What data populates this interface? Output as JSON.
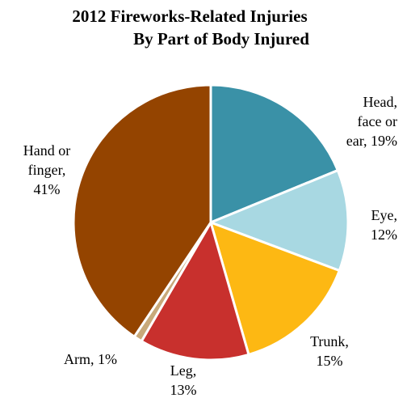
{
  "chart_data": {
    "type": "pie",
    "title": "2012 Fireworks-Related Injuries",
    "subtitle": "By Part of Body Injured",
    "slices": [
      {
        "key": "head",
        "label_lines": [
          "Head,",
          "face or",
          "ear, 19%"
        ],
        "value": 19,
        "color": "#3A91A7"
      },
      {
        "key": "eye",
        "label_lines": [
          "Eye,",
          "12%"
        ],
        "value": 12,
        "color": "#A8D8E2"
      },
      {
        "key": "trunk",
        "label_lines": [
          "Trunk,",
          "15%"
        ],
        "value": 15,
        "color": "#FDB813"
      },
      {
        "key": "leg",
        "label_lines": [
          "Leg,",
          "13%"
        ],
        "value": 13,
        "color": "#C8302D"
      },
      {
        "key": "arm",
        "label_lines": [
          "Arm, 1%"
        ],
        "value": 1,
        "color": "#C8A97A"
      },
      {
        "key": "hand",
        "label_lines": [
          "Hand or",
          "finger,",
          "41%"
        ],
        "value": 41,
        "color": "#944400"
      }
    ]
  }
}
